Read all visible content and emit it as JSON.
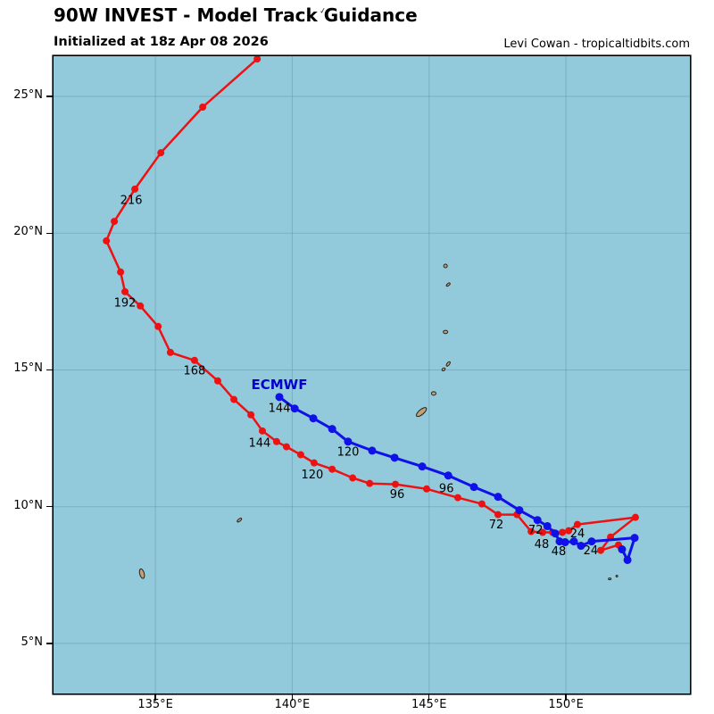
{
  "header": {
    "title": "90W INVEST - Model Track Guidance",
    "subtitle": "Initialized at 18z Apr 08 2026",
    "credit": "Levi Cowan - tropicaltidbits.com"
  },
  "colors": {
    "ocean": "#92cadc",
    "grid": "#6699ad",
    "border": "#000000",
    "island_fill": "#c6a071",
    "island_stroke": "#222222",
    "red_track": "#ee1111",
    "blue_track": "#1010e8",
    "ecmwf_label": "#0000cf",
    "label_text": "#000000"
  },
  "chart_data": {
    "type": "line",
    "title": "90W INVEST - Model Track Guidance",
    "subtitle": "Initialized at 18z Apr 08 2026",
    "projection": "plate-carree lat/lon",
    "axes": {
      "lon_min": 131.28,
      "lon_max": 154.53,
      "lat_min": 3.17,
      "lat_max": 26.47,
      "grid": true,
      "lon_ticks": [
        {
          "value": 135,
          "label": "135°E"
        },
        {
          "value": 140,
          "label": "140°E"
        },
        {
          "value": 145,
          "label": "145°E"
        },
        {
          "value": 150,
          "label": "150°E"
        }
      ],
      "lat_ticks": [
        {
          "value": 25,
          "label": "25°N"
        },
        {
          "value": 20,
          "label": "20°N"
        },
        {
          "value": 15,
          "label": "15°N"
        },
        {
          "value": 10,
          "label": "10°N"
        },
        {
          "value": 5,
          "label": "5°N"
        }
      ]
    },
    "series": [
      {
        "id": "red-model",
        "color": "#ee1111",
        "line_width": 2.5,
        "dot_radius": 4,
        "points": [
          [
            151.92,
            8.6
          ],
          [
            151.27,
            8.4
          ],
          [
            151.63,
            8.89
          ],
          [
            152.54,
            9.61
          ],
          [
            150.42,
            9.35
          ],
          [
            150.1,
            9.12
          ],
          [
            149.87,
            9.06
          ],
          [
            149.51,
            9.06
          ],
          [
            149.15,
            9.06
          ],
          [
            148.73,
            9.09
          ],
          [
            148.21,
            9.71
          ],
          [
            147.52,
            9.71
          ],
          [
            146.93,
            10.1
          ],
          [
            146.05,
            10.33
          ],
          [
            144.91,
            10.65
          ],
          [
            143.77,
            10.82
          ],
          [
            142.83,
            10.85
          ],
          [
            142.21,
            11.05
          ],
          [
            141.46,
            11.37
          ],
          [
            140.8,
            11.6
          ],
          [
            140.31,
            11.9
          ],
          [
            139.79,
            12.19
          ],
          [
            139.43,
            12.38
          ],
          [
            138.91,
            12.77
          ],
          [
            138.49,
            13.36
          ],
          [
            137.87,
            13.92
          ],
          [
            137.28,
            14.6
          ],
          [
            136.43,
            15.35
          ],
          [
            135.55,
            15.64
          ],
          [
            135.1,
            16.59
          ],
          [
            134.45,
            17.34
          ],
          [
            133.89,
            17.86
          ],
          [
            133.73,
            18.58
          ],
          [
            133.21,
            19.72
          ],
          [
            133.5,
            20.43
          ],
          [
            134.25,
            21.61
          ],
          [
            135.2,
            22.94
          ],
          [
            136.73,
            24.61
          ],
          [
            138.72,
            26.37
          ],
          [
            139.08,
            26.9
          ]
        ],
        "hour_labels": [
          {
            "text": "24",
            "lon": 150.42,
            "lat": 9.35,
            "dx": 0,
            "dy": 11
          },
          {
            "text": "48",
            "lon": 149.15,
            "lat": 9.06,
            "dx": -1,
            "dy": 14
          },
          {
            "text": "72",
            "lon": 147.52,
            "lat": 9.71,
            "dx": -2,
            "dy": 12
          },
          {
            "text": "96",
            "lon": 143.77,
            "lat": 10.82,
            "dx": 2,
            "dy": 12
          },
          {
            "text": "120",
            "lon": 140.8,
            "lat": 11.6,
            "dx": -2,
            "dy": 14
          },
          {
            "text": "144",
            "lon": 139.43,
            "lat": 12.38,
            "dx": -19,
            "dy": 2
          },
          {
            "text": "168",
            "lon": 136.43,
            "lat": 15.35,
            "dx": 0,
            "dy": 12
          },
          {
            "text": "192",
            "lon": 133.89,
            "lat": 17.86,
            "dx": 0,
            "dy": 13
          },
          {
            "text": "216",
            "lon": 134.25,
            "lat": 21.61,
            "dx": -4,
            "dy": 13
          }
        ]
      },
      {
        "id": "ecmwf",
        "color": "#1010e8",
        "line_width": 3,
        "dot_radius": 4.5,
        "track_label": {
          "text": "ECMWF",
          "lon": 139.53,
          "lat": 14.01,
          "dx": 0,
          "dy": -14
        },
        "points": [
          [
            152.05,
            8.44
          ],
          [
            152.25,
            8.05
          ],
          [
            152.51,
            8.86
          ],
          [
            150.94,
            8.73
          ],
          [
            150.55,
            8.57
          ],
          [
            150.29,
            8.73
          ],
          [
            149.97,
            8.7
          ],
          [
            149.77,
            8.73
          ],
          [
            149.61,
            9.02
          ],
          [
            149.32,
            9.29
          ],
          [
            148.96,
            9.51
          ],
          [
            148.3,
            9.87
          ],
          [
            147.52,
            10.36
          ],
          [
            146.64,
            10.72
          ],
          [
            145.7,
            11.14
          ],
          [
            144.75,
            11.47
          ],
          [
            143.74,
            11.79
          ],
          [
            142.92,
            12.05
          ],
          [
            142.04,
            12.38
          ],
          [
            141.46,
            12.84
          ],
          [
            140.77,
            13.23
          ],
          [
            140.09,
            13.59
          ],
          [
            139.53,
            14.01
          ]
        ],
        "hour_labels": [
          {
            "text": "24",
            "lon": 150.94,
            "lat": 8.73,
            "dx": -1,
            "dy": 11
          },
          {
            "text": "48",
            "lon": 149.77,
            "lat": 8.73,
            "dx": -1,
            "dy": 12
          },
          {
            "text": "72",
            "lon": 148.96,
            "lat": 9.51,
            "dx": -2,
            "dy": 12
          },
          {
            "text": "96",
            "lon": 145.7,
            "lat": 11.14,
            "dx": -2,
            "dy": 15
          },
          {
            "text": "120",
            "lon": 142.04,
            "lat": 12.38,
            "dx": 0,
            "dy": 12
          },
          {
            "text": "144",
            "lon": 139.53,
            "lat": 14.01,
            "dx": 0,
            "dy": 13
          }
        ]
      }
    ],
    "islands": [
      {
        "name": "anatahan",
        "lon": 145.6,
        "lat": 18.8,
        "rx": 2,
        "ry": 2,
        "rot": 0
      },
      {
        "name": "sarigan",
        "lon": 145.7,
        "lat": 18.12,
        "rx": 2.5,
        "ry": 1.2,
        "rot": -40
      },
      {
        "name": "pagan-s",
        "lon": 145.6,
        "lat": 16.39,
        "rx": 2.5,
        "ry": 1.8,
        "rot": 0
      },
      {
        "name": "saipan",
        "lon": 145.7,
        "lat": 15.22,
        "rx": 3,
        "ry": 1.4,
        "rot": -50
      },
      {
        "name": "tinian",
        "lon": 145.53,
        "lat": 15.02,
        "rx": 2,
        "ry": 1.4,
        "rot": -40
      },
      {
        "name": "rota",
        "lon": 145.17,
        "lat": 14.14,
        "rx": 2.5,
        "ry": 2,
        "rot": 0
      },
      {
        "name": "guam",
        "lon": 144.72,
        "lat": 13.46,
        "rx": 7,
        "ry": 2.8,
        "rot": -40
      },
      {
        "name": "yap",
        "lon": 138.07,
        "lat": 9.51,
        "rx": 3,
        "ry": 1.3,
        "rot": -40
      },
      {
        "name": "palau",
        "lon": 134.51,
        "lat": 7.55,
        "rx": 2.5,
        "ry": 5.5,
        "rot": -15
      },
      {
        "name": "atoll-1",
        "lon": 151.6,
        "lat": 7.36,
        "rx": 1.5,
        "ry": 1,
        "rot": 0
      },
      {
        "name": "atoll-2",
        "lon": 151.86,
        "lat": 7.46,
        "rx": 1,
        "ry": 1,
        "rot": 0
      }
    ]
  }
}
